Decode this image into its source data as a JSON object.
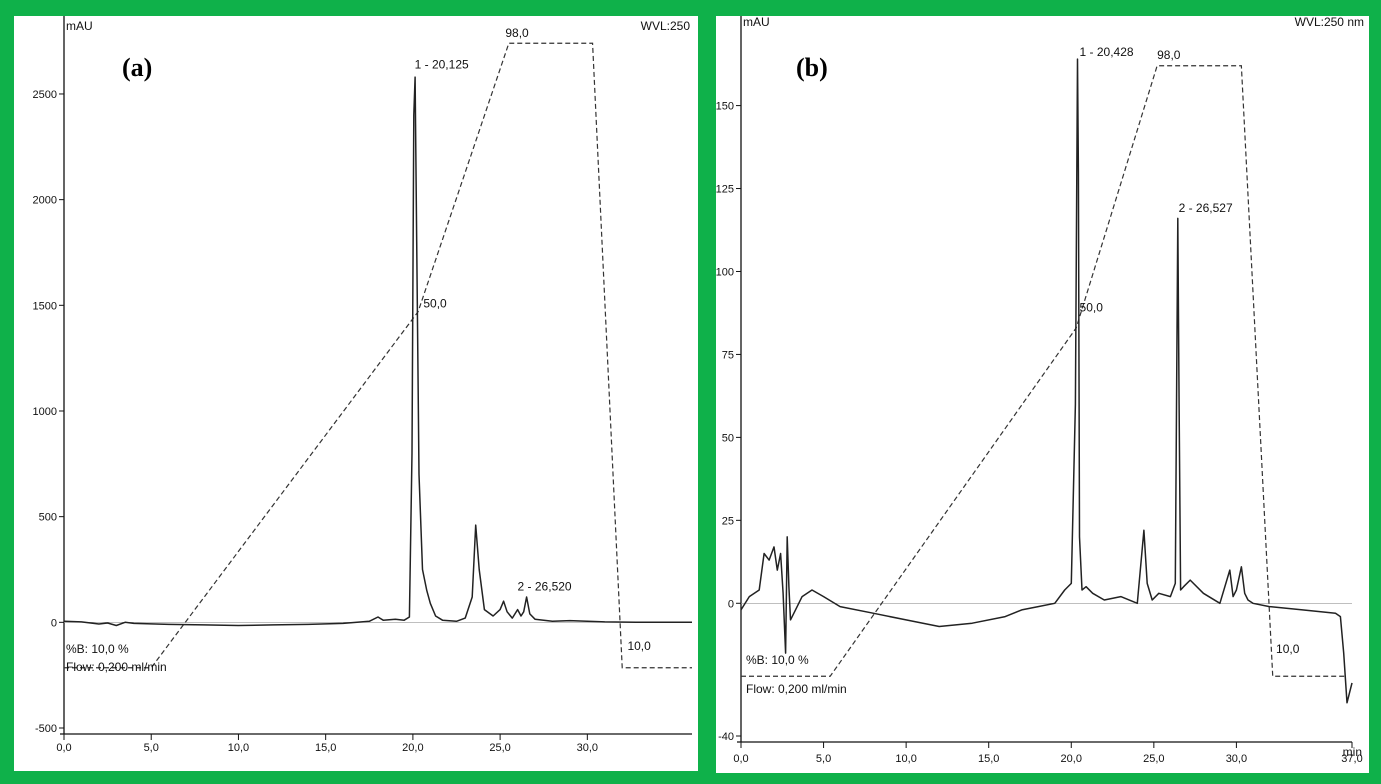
{
  "colors": {
    "frame": "#0fb14a",
    "trace": "#222222",
    "gradient": "#333333"
  },
  "chart_data": [
    {
      "type": "line",
      "panel_label": "(a)",
      "ylabel": "mAU",
      "top_right": "WVL:250",
      "xlabel": "",
      "xlim": [
        0,
        36
      ],
      "ylim": [
        -500,
        2850
      ],
      "x_ticks": [
        0,
        5,
        10,
        15,
        20,
        25,
        30
      ],
      "x_tick_labels": [
        "0,0",
        "5,0",
        "10,0",
        "15,0",
        "20,0",
        "25,0",
        "30,0"
      ],
      "y_ticks": [
        -500,
        0,
        500,
        1000,
        1500,
        2000,
        2500
      ],
      "y_tick_labels": [
        "-500",
        "0",
        "500",
        "1000",
        "1500",
        "2000",
        "2500"
      ],
      "series": [
        {
          "x": [
            0,
            1,
            2,
            2.5,
            3,
            3.5,
            4,
            6,
            8,
            10,
            12,
            14,
            16,
            17.5,
            18,
            18.3,
            19,
            19.5,
            19.8,
            19.95,
            20.05,
            20.125,
            20.22,
            20.35,
            20.55,
            20.8,
            21,
            21.3,
            21.7,
            22.5,
            23,
            23.4,
            23.6,
            23.8,
            24.1,
            24.6,
            25,
            25.2,
            25.4,
            25.7,
            26,
            26.2,
            26.35,
            26.52,
            26.7,
            27,
            27.5,
            28,
            29,
            30,
            31,
            33,
            36
          ],
          "y": [
            5,
            2,
            -8,
            -3,
            -15,
            0,
            -5,
            -10,
            -12,
            -15,
            -12,
            -10,
            -5,
            5,
            25,
            10,
            15,
            10,
            25,
            800,
            2400,
            2580,
            1800,
            700,
            250,
            150,
            90,
            30,
            10,
            5,
            20,
            120,
            460,
            250,
            60,
            30,
            60,
            100,
            50,
            20,
            60,
            30,
            50,
            120,
            40,
            15,
            10,
            5,
            8,
            5,
            2,
            0,
            0
          ]
        }
      ],
      "gradient": {
        "x": [
          0,
          5,
          20.3,
          25.5,
          30.3,
          32,
          36
        ],
        "y": [
          -215,
          -215,
          1470,
          2740,
          2740,
          -215,
          -215
        ],
        "labels": [
          {
            "text": "98,0",
            "x": 25.3,
            "y": 2770
          },
          {
            "text": "50,0",
            "x": 20.6,
            "y": 1490
          },
          {
            "text": "10,0",
            "x": 32.3,
            "y": -130
          }
        ]
      },
      "peak_labels": [
        {
          "text": "1 - 20,125",
          "x": 20.1,
          "y": 2620
        },
        {
          "text": "2 - 26,520",
          "x": 26.0,
          "y": 150
        }
      ],
      "notes": [
        "%B: 10,0 %",
        "Flow: 0,200 ml/min"
      ]
    },
    {
      "type": "line",
      "panel_label": "(b)",
      "ylabel": "mAU",
      "top_right": "WVL:250 nm",
      "xlabel": "min",
      "xlim": [
        0,
        37
      ],
      "ylim": [
        -40,
        177
      ],
      "x_ticks": [
        0,
        5,
        10,
        15,
        20,
        25,
        30,
        37
      ],
      "x_tick_labels": [
        "0,0",
        "5,0",
        "10,0",
        "15,0",
        "20,0",
        "25,0",
        "30,0",
        "37,0"
      ],
      "y_ticks": [
        -40,
        0,
        25,
        50,
        75,
        100,
        125,
        150
      ],
      "y_tick_labels": [
        "-40",
        "0",
        "25",
        "50",
        "75",
        "100",
        "125",
        "150"
      ],
      "series": [
        {
          "x": [
            0,
            0.5,
            1.1,
            1.4,
            1.7,
            2.0,
            2.2,
            2.4,
            2.55,
            2.7,
            2.8,
            2.9,
            3.0,
            3.3,
            3.7,
            4.3,
            5,
            6,
            8,
            10,
            12,
            14,
            16,
            17,
            18,
            19,
            19.6,
            20,
            20.25,
            20.38,
            20.43,
            20.5,
            20.65,
            20.9,
            21.3,
            22,
            23,
            24,
            24.4,
            24.6,
            24.9,
            25.3,
            26,
            26.3,
            26.45,
            26.53,
            26.62,
            26.8,
            27.2,
            28,
            29,
            29.6,
            29.8,
            30,
            30.3,
            30.5,
            30.7,
            31,
            32,
            34,
            36,
            36.3,
            36.5,
            36.7,
            37
          ],
          "y": [
            -2,
            2,
            4,
            15,
            13,
            17,
            10,
            15,
            3,
            -15,
            20,
            5,
            -5,
            -2,
            2,
            4,
            2,
            -1,
            -3,
            -5,
            -7,
            -6,
            -4,
            -2,
            -1,
            0,
            4,
            6,
            60,
            164,
            130,
            20,
            4,
            5,
            3,
            1,
            2,
            0,
            22,
            6,
            1,
            3,
            2,
            6,
            116,
            60,
            4,
            5,
            7,
            3,
            0,
            10,
            2,
            4,
            11,
            3,
            1,
            0,
            -1,
            -2,
            -3,
            -4,
            -15,
            -30,
            -24
          ]
        }
      ],
      "gradient": {
        "x": [
          0,
          5.4,
          20.3,
          25.2,
          30.3,
          32.2,
          36.7
        ],
        "y": [
          -22,
          -22,
          83,
          162,
          162,
          -22,
          -22
        ],
        "labels": [
          {
            "text": "98,0",
            "x": 25.2,
            "y": 164
          },
          {
            "text": "50,0",
            "x": 20.5,
            "y": 88
          },
          {
            "text": "10,0",
            "x": 32.4,
            "y": -15
          }
        ]
      },
      "peak_labels": [
        {
          "text": "1 - 20,428",
          "x": 20.5,
          "y": 165
        },
        {
          "text": "2 - 26,527",
          "x": 26.5,
          "y": 118
        }
      ],
      "notes": [
        "%B: 10,0 %",
        "Flow: 0,200 ml/min"
      ]
    }
  ]
}
